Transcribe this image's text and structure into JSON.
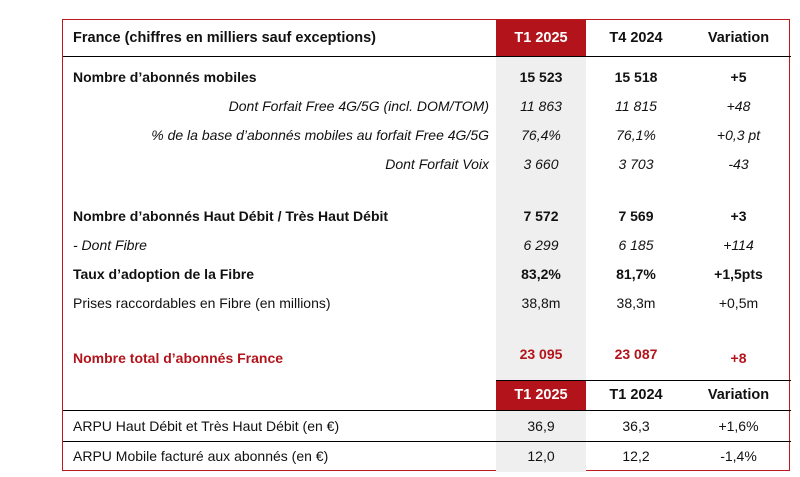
{
  "header1": {
    "label": "France (chiffres en milliers sauf exceptions)",
    "col1": "T1 2025",
    "col2": "T4 2024",
    "col3": "Variation"
  },
  "rows": [
    {
      "label": "Nombre d’abonnés mobiles",
      "v1": "15 523",
      "v2": "15 518",
      "v3": "+5"
    },
    {
      "label": "Dont Forfait Free 4G/5G (incl. DOM/TOM)",
      "v1": "11 863",
      "v2": "11 815",
      "v3": "+48"
    },
    {
      "label": "% de la base d’abonnés mobiles au forfait Free 4G/5G",
      "v1": "76,4%",
      "v2": "76,1%",
      "v3": "+0,3 pt"
    },
    {
      "label": "Dont Forfait Voix",
      "v1": "3 660",
      "v2": "3 703",
      "v3": "-43"
    },
    {
      "label": "Nombre d’abonnés Haut Débit / Très Haut Débit",
      "v1": "7 572",
      "v2": "7 569",
      "v3": "+3"
    },
    {
      "label": "- Dont Fibre",
      "v1": "6 299",
      "v2": "6 185",
      "v3": "+114"
    },
    {
      "label": "Taux d’adoption de la Fibre",
      "v1": "83,2%",
      "v2": "81,7%",
      "v3": "+1,5pts"
    },
    {
      "label": "Prises raccordables en Fibre (en millions)",
      "v1": "38,8m",
      "v2": "38,3m",
      "v3": "+0,5m"
    },
    {
      "label": "Nombre total d’abonnés France",
      "v1": "23 095",
      "v2": "23 087",
      "v3": "+8"
    }
  ],
  "header2": {
    "col1": "T1 2025",
    "col2": "T1 2024",
    "col3": "Variation"
  },
  "arpu_rows": [
    {
      "label": "ARPU Haut Débit et Très Haut Débit (en €)",
      "v1": "36,9",
      "v2": "36,3",
      "v3": "+1,6%"
    },
    {
      "label": "ARPU Mobile facturé aux abonnés (en €)",
      "v1": "12,0",
      "v2": "12,2",
      "v3": "-1,4%"
    }
  ]
}
